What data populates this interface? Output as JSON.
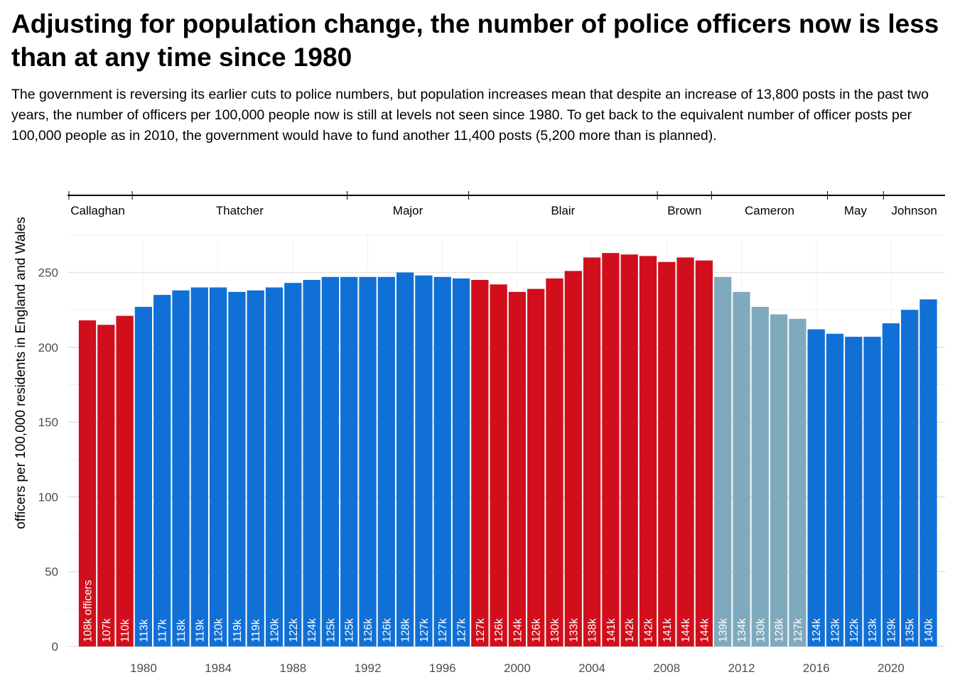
{
  "title": "Adjusting for population change, the number of police officers now is less than at any time since 1980",
  "subtitle": "The government is reversing its earlier cuts to police numbers, but population increases mean that despite an increase of 13,800 posts in the past two years, the number of officers per 100,000 people now is still at levels not seen since 1980. To get back to the equivalent number of officer posts per 100,000 people as in 2010, the government would have to fund another 11,400 posts (5,200 more than is planned).",
  "colors": {
    "labour": "#d10f1c",
    "conservative": "#1170d6",
    "coalition": "#7faabd"
  },
  "chart_data": {
    "type": "bar",
    "ylabel": "officers per 100,000 residents in England and Wales",
    "ylim": [
      0,
      275
    ],
    "yticks": [
      0,
      50,
      100,
      150,
      200,
      250
    ],
    "xticks": [
      1980,
      1984,
      1988,
      1992,
      1996,
      2000,
      2004,
      2008,
      2012,
      2016,
      2020
    ],
    "grid": true,
    "first_bar_label_suffix": " officers",
    "years": [
      1977,
      1978,
      1979,
      1980,
      1981,
      1982,
      1983,
      1984,
      1985,
      1986,
      1987,
      1988,
      1989,
      1990,
      1991,
      1992,
      1993,
      1994,
      1995,
      1996,
      1997,
      1998,
      1999,
      2000,
      2001,
      2002,
      2003,
      2004,
      2005,
      2006,
      2007,
      2008,
      2009,
      2010,
      2011,
      2012,
      2013,
      2014,
      2015,
      2016,
      2017,
      2018,
      2019,
      2020,
      2021,
      2022
    ],
    "values": [
      218,
      215,
      221,
      227,
      235,
      238,
      240,
      240,
      237,
      238,
      240,
      243,
      245,
      247,
      247,
      247,
      247,
      250,
      248,
      247,
      246,
      245,
      242,
      237,
      239,
      246,
      251,
      260,
      263,
      262,
      261,
      257,
      260,
      258,
      247,
      237,
      227,
      222,
      219,
      212,
      209,
      207,
      207,
      216,
      225,
      232
    ],
    "labels": [
      "108k",
      "107k",
      "110k",
      "113k",
      "117k",
      "118k",
      "119k",
      "120k",
      "119k",
      "119k",
      "120k",
      "122k",
      "124k",
      "125k",
      "125k",
      "126k",
      "126k",
      "128k",
      "127k",
      "127k",
      "127k",
      "127k",
      "126k",
      "124k",
      "126k",
      "130k",
      "133k",
      "138k",
      "141k",
      "142k",
      "142k",
      "141k",
      "144k",
      "144k",
      "139k",
      "134k",
      "130k",
      "128k",
      "127k",
      "124k",
      "123k",
      "122k",
      "123k",
      "129k",
      "135k",
      "140k"
    ],
    "parties": [
      "labour",
      "labour",
      "labour",
      "conservative",
      "conservative",
      "conservative",
      "conservative",
      "conservative",
      "conservative",
      "conservative",
      "conservative",
      "conservative",
      "conservative",
      "conservative",
      "conservative",
      "conservative",
      "conservative",
      "conservative",
      "conservative",
      "conservative",
      "conservative",
      "labour",
      "labour",
      "labour",
      "labour",
      "labour",
      "labour",
      "labour",
      "labour",
      "labour",
      "labour",
      "labour",
      "labour",
      "labour",
      "coalition",
      "coalition",
      "coalition",
      "coalition",
      "coalition",
      "conservative",
      "conservative",
      "conservative",
      "conservative",
      "conservative",
      "conservative",
      "conservative"
    ],
    "prime_ministers": [
      {
        "name": "Callaghan",
        "start": 1976.5,
        "end": 1979.4
      },
      {
        "name": "Thatcher",
        "start": 1979.4,
        "end": 1990.9
      },
      {
        "name": "Major",
        "start": 1990.9,
        "end": 1997.4
      },
      {
        "name": "Blair",
        "start": 1997.4,
        "end": 2007.5
      },
      {
        "name": "Brown",
        "start": 2007.5,
        "end": 2010.4
      },
      {
        "name": "Cameron",
        "start": 2010.4,
        "end": 2016.6
      },
      {
        "name": "May",
        "start": 2016.6,
        "end": 2019.6
      },
      {
        "name": "Johnson",
        "start": 2019.6,
        "end": 2022.5
      }
    ]
  }
}
